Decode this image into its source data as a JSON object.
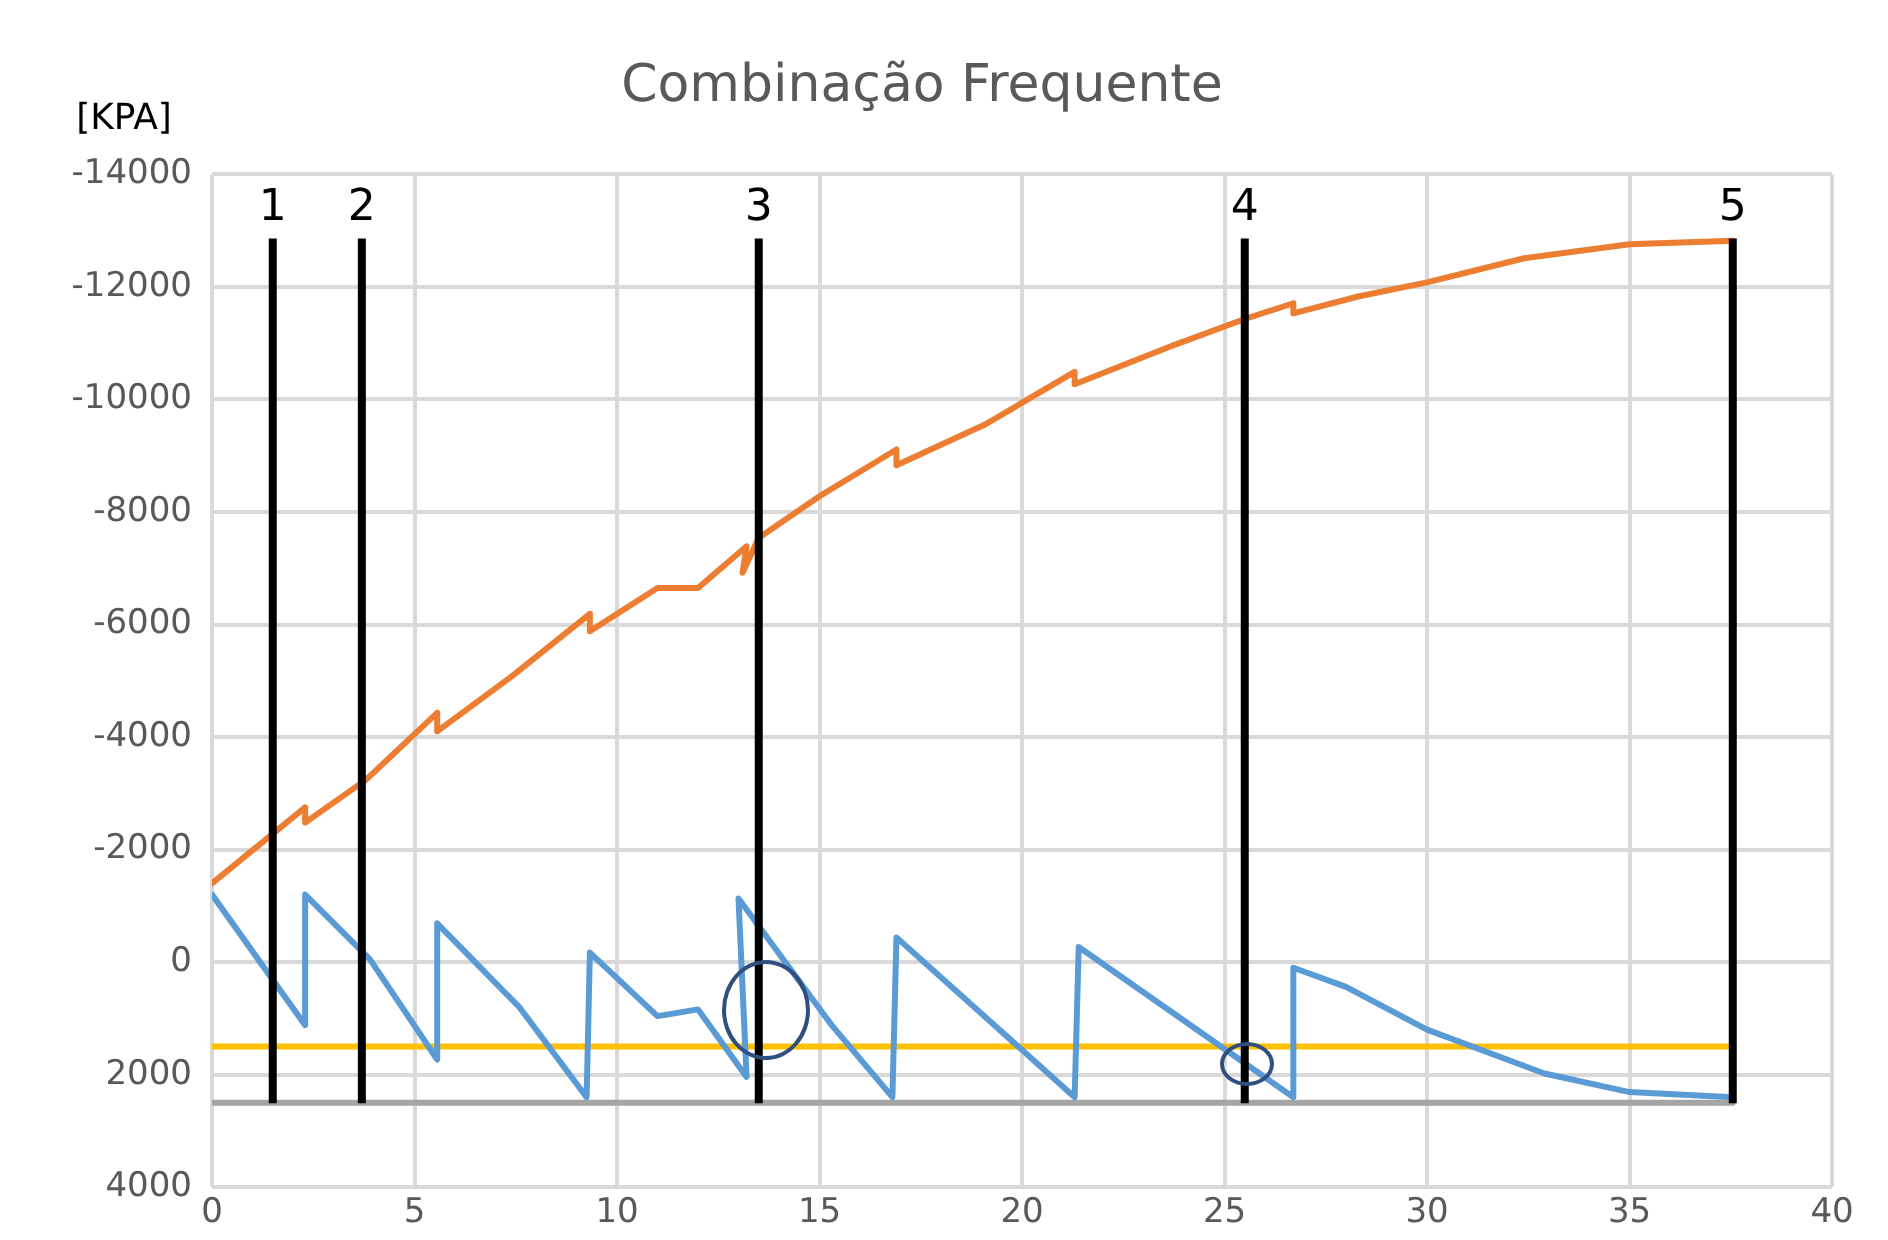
{
  "chart_data": {
    "type": "line",
    "title": "Combinação Frequente",
    "ylabel": "[KPA]",
    "xlim": [
      0,
      40
    ],
    "xticks": [
      0,
      5,
      10,
      15,
      20,
      25,
      30,
      35,
      40
    ],
    "ylim": [
      4000,
      -14000
    ],
    "yticks": [
      -14000,
      -12000,
      -10000,
      -8000,
      -6000,
      -4000,
      -2000,
      0,
      2000,
      4000
    ],
    "grid": true,
    "legend": false,
    "marker": "none",
    "line_style": "solid",
    "series": [
      {
        "color": "#ed7d31",
        "x": [
          0,
          2.3,
          2.3,
          3.8,
          5.56,
          5.56,
          7.4,
          9.33,
          9.33,
          11.0,
          12.0,
          13.2,
          13.1,
          13.5,
          15.0,
          16.9,
          16.9,
          19.1,
          21.3,
          21.3,
          23.8,
          25.5,
          26.7,
          26.7,
          28.3,
          30.0,
          32.4,
          35.0,
          37.55
        ],
        "values": [
          -1400,
          -2750,
          -2480,
          -3240,
          -4430,
          -4100,
          -5080,
          -6190,
          -5880,
          -6650,
          -6650,
          -7390,
          -6920,
          -7540,
          -8280,
          -9110,
          -8830,
          -9560,
          -10490,
          -10270,
          -10980,
          -11430,
          -11710,
          -11530,
          -11830,
          -12080,
          -12510,
          -12760,
          -12820
        ]
      },
      {
        "color": "#5b9bd5",
        "x": [
          0,
          2.3,
          2.3,
          3.9,
          5.56,
          5.56,
          7.6,
          9.25,
          9.33,
          11.0,
          12.0,
          13.2,
          13.0,
          15.3,
          16.8,
          16.9,
          21.3,
          21.4,
          26.7,
          26.7,
          28.0,
          30.0,
          32.9,
          35.0,
          37.55
        ],
        "values": [
          -1200,
          1120,
          -1200,
          -50,
          1730,
          -690,
          810,
          2400,
          -170,
          960,
          840,
          2040,
          -1130,
          1120,
          2400,
          -440,
          2400,
          -270,
          2400,
          100,
          440,
          1200,
          1980,
          2310,
          2400
        ]
      },
      {
        "color": "#ffc000",
        "x": [
          0,
          37.55
        ],
        "values": [
          1500,
          1500
        ]
      },
      {
        "color": "#a5a5a5",
        "x": [
          0,
          37.55
        ],
        "values": [
          2500,
          2500
        ]
      }
    ],
    "ref_lines": [
      {
        "axis": "x",
        "value": 1.5,
        "color": "#000000"
      },
      {
        "axis": "x",
        "value": 3.7,
        "color": "#000000"
      },
      {
        "axis": "x",
        "value": 13.5,
        "color": "#000000"
      },
      {
        "axis": "x",
        "value": 25.5,
        "color": "#000000"
      },
      {
        "axis": "x",
        "value": 37.55,
        "color": "#000000"
      }
    ],
    "annotations": [
      "1",
      "2",
      "3",
      "4",
      "5"
    ]
  }
}
